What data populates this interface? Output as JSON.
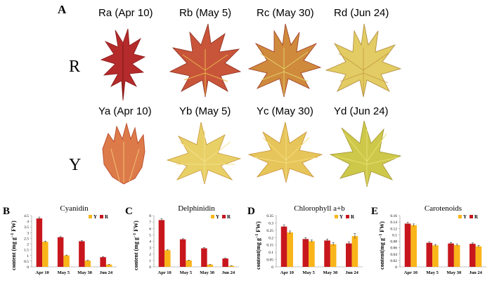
{
  "panel_a": {
    "label": "A",
    "row_r": {
      "label": "R",
      "columns": [
        "Ra (Apr 10)",
        "Rb (May 5)",
        "Rc (May 30)",
        "Rd (Jun 24)"
      ],
      "leaf_colors": [
        "#b52a2a",
        "#c8553a",
        "#cf8a3c",
        "#e2cc63"
      ]
    },
    "row_y": {
      "label": "Y",
      "columns": [
        "Ya (Apr 10)",
        "Yb (May 5)",
        "Yc (May 30)",
        "Yd (Jun 24)"
      ],
      "leaf_colors": [
        "#dd7a4a",
        "#e8d067",
        "#e6c65a",
        "#cdc84a"
      ]
    }
  },
  "chart_data": [
    {
      "panel": "B",
      "type": "bar",
      "title": "Cyanidin",
      "ylabel": "content (mg g",
      "ylabel_sup": "−1",
      "ylabel_suffix": " FW)",
      "categories": [
        "Apr 10",
        "May 5",
        "May 30",
        "Jun 24"
      ],
      "ylim": [
        0,
        4.5
      ],
      "yticks": [
        "0",
        "0.5",
        "1",
        "1.5",
        "2",
        "2.5",
        "3",
        "3.5",
        "4",
        "4.5"
      ],
      "legend": [
        "Y",
        "R"
      ],
      "series": [
        {
          "name": "R",
          "color": "#c8161d",
          "values": [
            4.25,
            2.6,
            2.25,
            0.85
          ],
          "errors": [
            0.12,
            0.06,
            0.05,
            0.04
          ]
        },
        {
          "name": "Y",
          "color": "#f9b519",
          "values": [
            2.2,
            1.0,
            0.55,
            0.2
          ],
          "errors": [
            0.06,
            0.04,
            0.03,
            0.02
          ]
        }
      ]
    },
    {
      "panel": "C",
      "type": "bar",
      "title": "Delphinidin",
      "ylabel": "content (mg g",
      "ylabel_sup": "−1",
      "ylabel_suffix": " FW)",
      "categories": [
        "Apr 10",
        "May 5",
        "May 30",
        "Jun 24"
      ],
      "ylim": [
        0,
        8
      ],
      "yticks": [
        "0",
        "1",
        "2",
        "3",
        "4",
        "5",
        "6",
        "7",
        "8"
      ],
      "legend": [
        "Y",
        "R"
      ],
      "series": [
        {
          "name": "R",
          "color": "#c8161d",
          "values": [
            7.3,
            4.3,
            2.9,
            1.3
          ],
          "errors": [
            0.2,
            0.1,
            0.1,
            0.05
          ]
        },
        {
          "name": "Y",
          "color": "#f9b519",
          "values": [
            2.6,
            1.0,
            0.35,
            0.15
          ],
          "errors": [
            0.08,
            0.05,
            0.03,
            0.02
          ]
        }
      ]
    },
    {
      "panel": "D",
      "type": "bar",
      "title": "Chlorophyll a+b",
      "ylabel": "content(mg g",
      "ylabel_sup": "−1",
      "ylabel_suffix": " FW)",
      "categories": [
        "Apr 10",
        "May 5",
        "May 30",
        "Jun 24"
      ],
      "ylim": [
        0,
        0.35
      ],
      "yticks": [
        "0",
        "0.05",
        "0.1",
        "0.15",
        "0.2",
        "0.25",
        "0.3",
        "0.35"
      ],
      "legend": [
        "Y",
        "R"
      ],
      "series": [
        {
          "name": "R",
          "color": "#c8161d",
          "values": [
            0.275,
            0.19,
            0.18,
            0.16
          ],
          "errors": [
            0.012,
            0.01,
            0.01,
            0.01
          ]
        },
        {
          "name": "Y",
          "color": "#f9b519",
          "values": [
            0.235,
            0.175,
            0.155,
            0.21
          ],
          "errors": [
            0.01,
            0.008,
            0.01,
            0.018
          ]
        }
      ]
    },
    {
      "panel": "E",
      "type": "bar",
      "title": "Carotenoids",
      "ylabel": "content(mg g",
      "ylabel_sup": "−1",
      "ylabel_suffix": " FW)",
      "categories": [
        "Apr 10",
        "May 5",
        "May 30",
        "Jun 24"
      ],
      "ylim": [
        0,
        0.16
      ],
      "yticks": [
        "0",
        "0.02",
        "0.04",
        "0.06",
        "0.08",
        "0.1",
        "0.12",
        "0.14",
        "0.16"
      ],
      "legend": [
        "Y",
        "R"
      ],
      "series": [
        {
          "name": "R",
          "color": "#c8161d",
          "values": [
            0.135,
            0.075,
            0.073,
            0.072
          ],
          "errors": [
            0.004,
            0.003,
            0.003,
            0.003
          ]
        },
        {
          "name": "Y",
          "color": "#f9b519",
          "values": [
            0.13,
            0.067,
            0.068,
            0.064
          ],
          "errors": [
            0.004,
            0.003,
            0.003,
            0.003
          ]
        }
      ]
    }
  ]
}
